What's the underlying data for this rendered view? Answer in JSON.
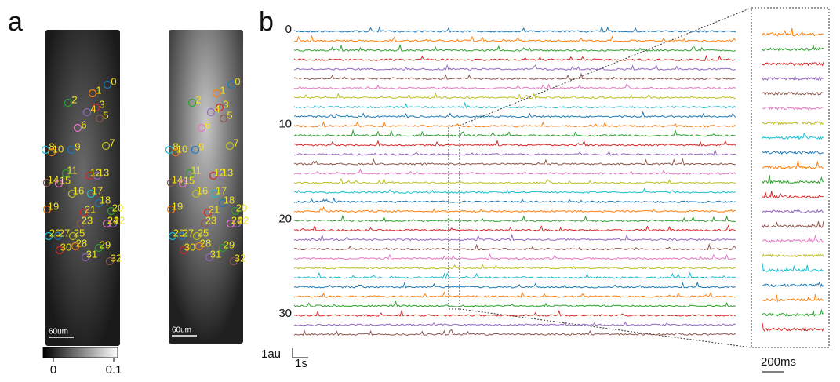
{
  "panel_a": {
    "label": "a",
    "roi_labels": [
      "0",
      "1",
      "2",
      "3",
      "4",
      "5",
      "6",
      "7",
      "8",
      "9",
      "10",
      "11",
      "12",
      "13",
      "14",
      "15",
      "16",
      "17",
      "18",
      "19",
      "20",
      "21",
      "22",
      "23",
      "24",
      "25",
      "26",
      "27",
      "28",
      "29",
      "30",
      "31",
      "32"
    ],
    "scale_bar_left": "60um",
    "scale_bar_right": "60um",
    "colorbar_ticks": [
      "0",
      "0.1"
    ]
  },
  "panel_b": {
    "label": "b",
    "trace_labels": [
      "0",
      "10",
      "20",
      "30"
    ],
    "trace_colors": [
      "#1f77b4",
      "#ff7f0e",
      "#2ca02c",
      "#d62728",
      "#9467bd",
      "#8c564b",
      "#e377c2",
      "#bcbd22",
      "#17becf"
    ],
    "amplitude_scale": "1au",
    "time_scale": "1s",
    "zoom_time_scale": "200ms"
  }
}
